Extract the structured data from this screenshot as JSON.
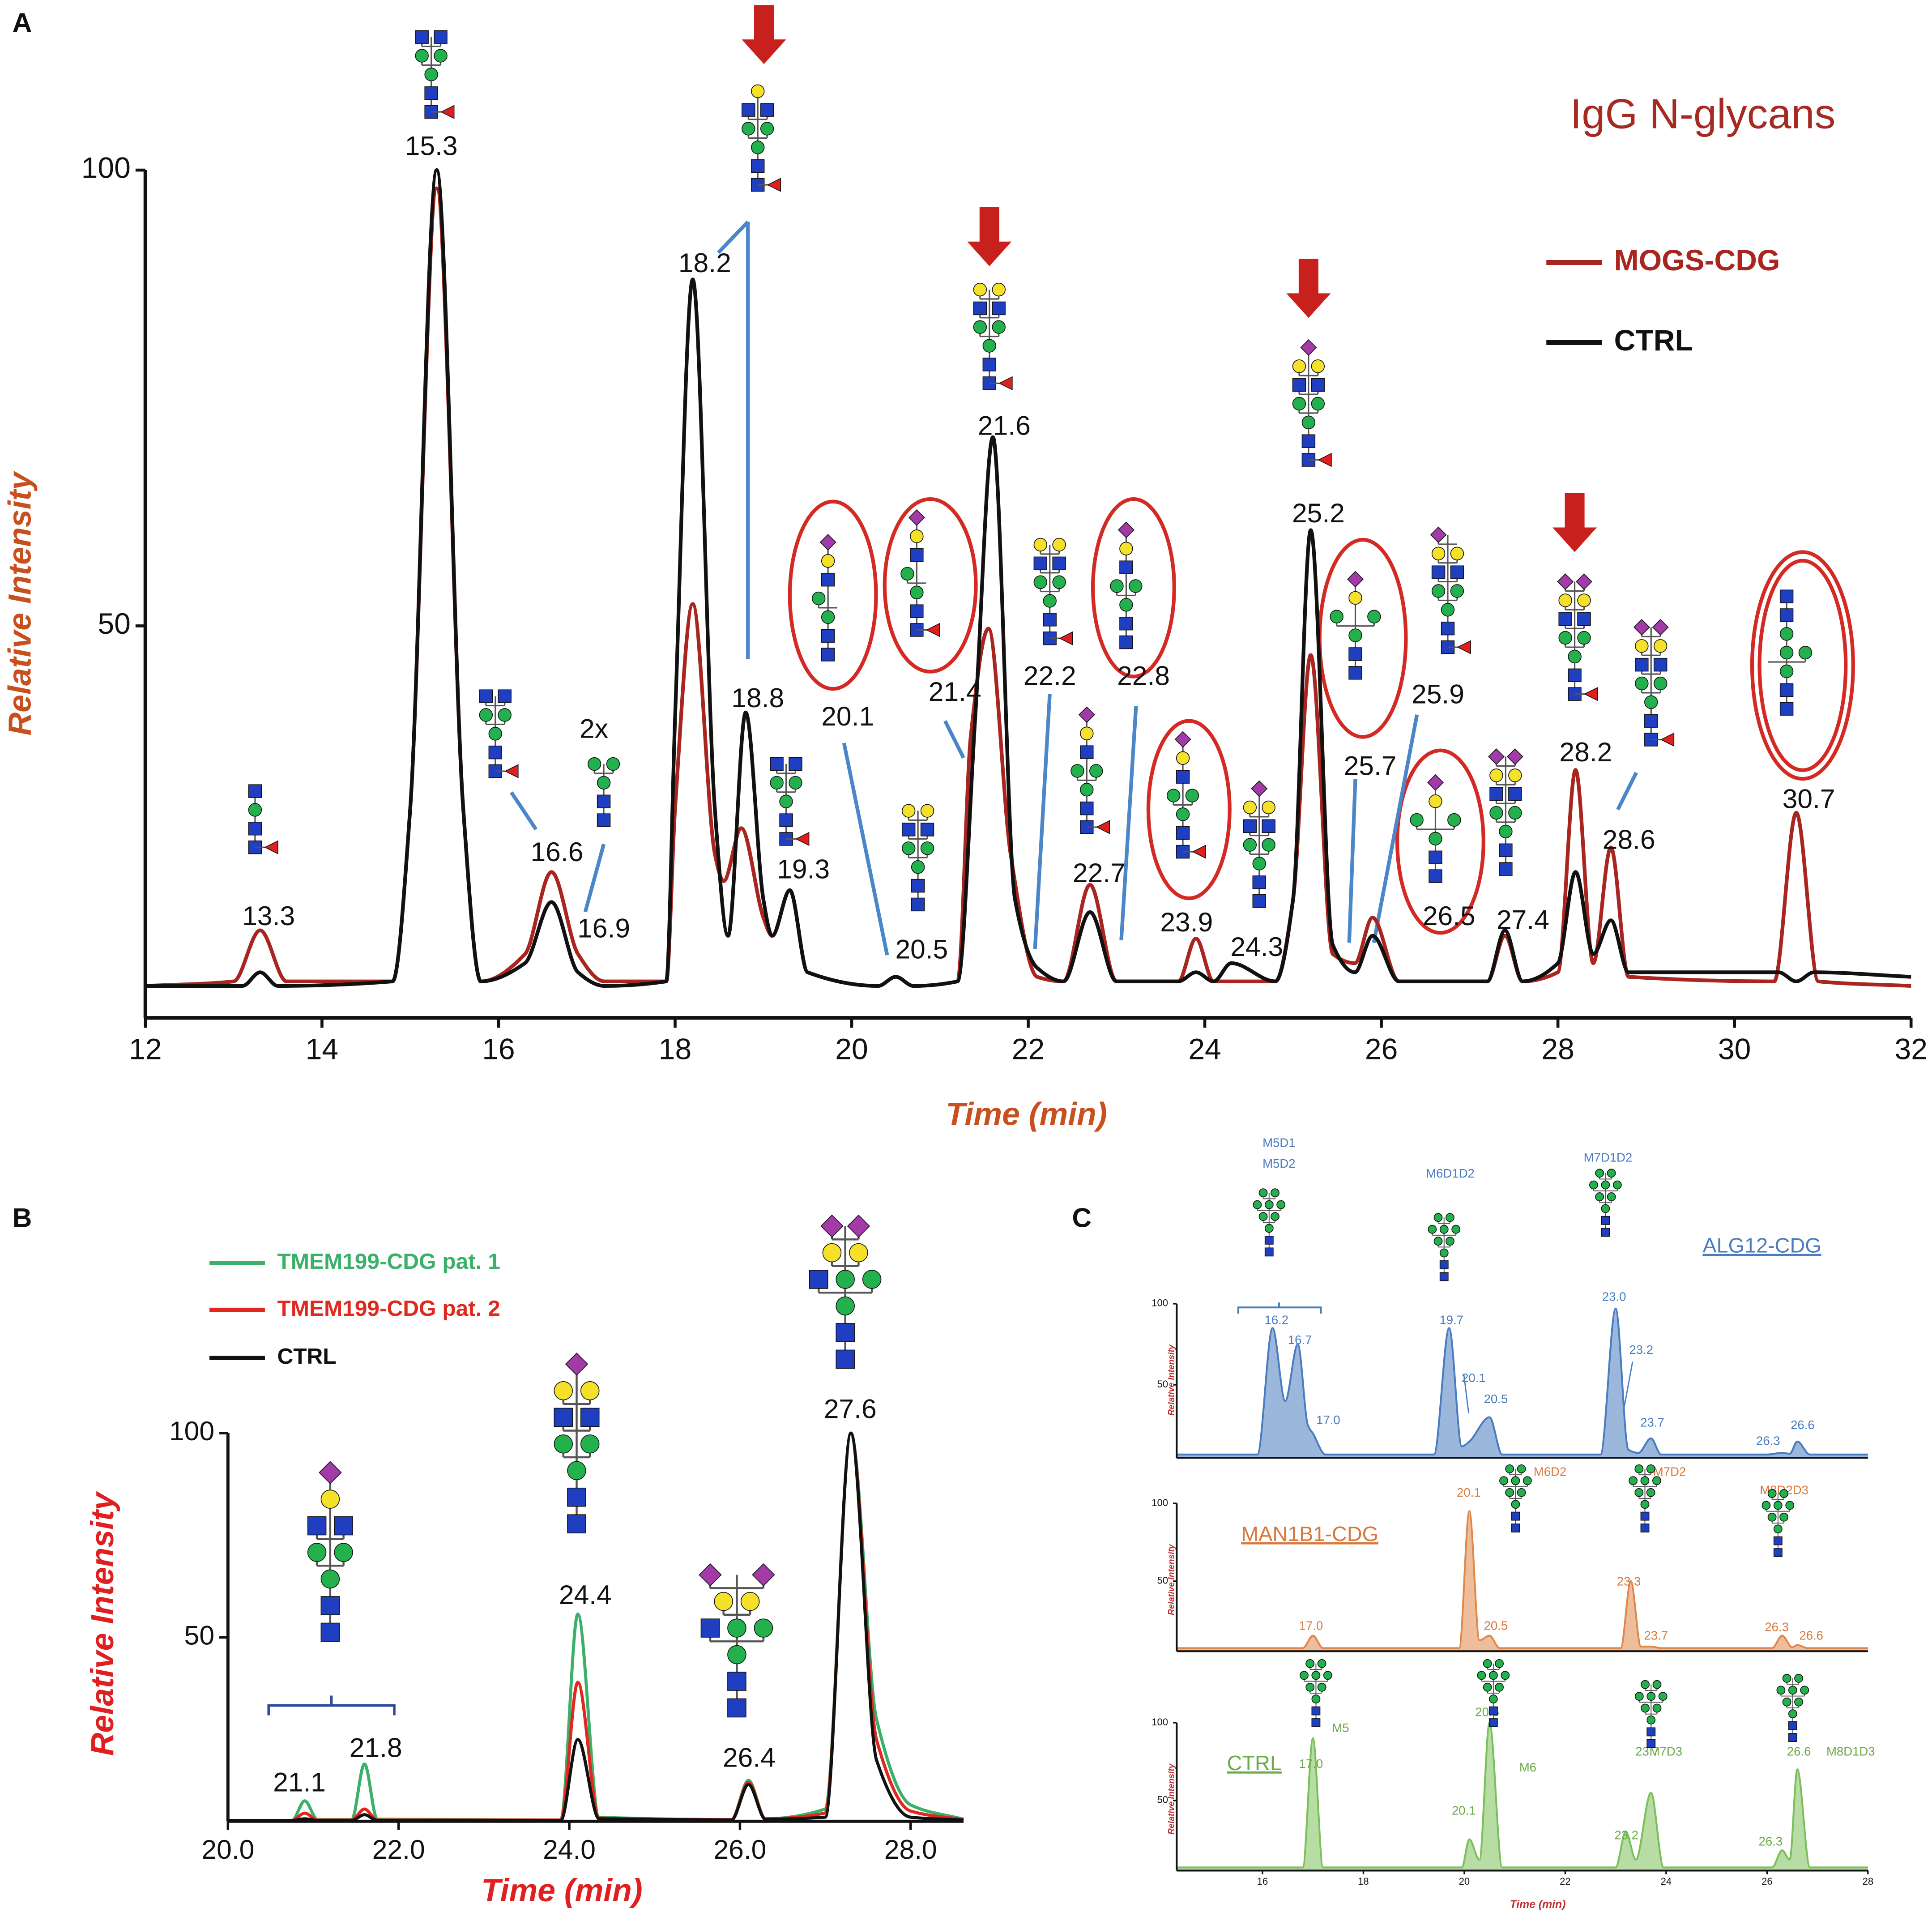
{
  "chart_data": [
    {
      "type": "line",
      "panel": "A",
      "title": "IgG N-glycans",
      "x_label": "Time (min)",
      "y_label": "Relative Intensity",
      "xlim": [
        12,
        32
      ],
      "ylim": [
        7,
        100
      ],
      "xticks": [
        12,
        14,
        16,
        18,
        20,
        22,
        24,
        26,
        28,
        30,
        32
      ],
      "yticks": [
        50,
        100
      ],
      "series": [
        {
          "name": "MOGS-CDG",
          "color": "#a8261f",
          "x": [
            12,
            13.0,
            13.3,
            13.6,
            14.8,
            15.0,
            15.3,
            15.6,
            15.8,
            16.3,
            16.6,
            16.9,
            17.2,
            17.9,
            18.0,
            18.2,
            18.45,
            18.55,
            18.75,
            19.0,
            19.1,
            19.3,
            19.5,
            20.3,
            20.5,
            20.7,
            21.2,
            21.35,
            21.55,
            21.8,
            22.1,
            22.4,
            22.7,
            23.0,
            23.7,
            23.9,
            24.1,
            24.8,
            25.0,
            25.2,
            25.45,
            25.7,
            25.9,
            26.2,
            27.2,
            27.4,
            27.6,
            28.0,
            28.2,
            28.4,
            28.6,
            28.8,
            30.45,
            30.7,
            30.95,
            32
          ],
          "values": [
            10.5,
            11,
            16.6,
            11,
            11,
            30,
            98,
            30,
            11,
            14,
            23,
            14,
            11,
            11,
            30,
            52.4,
            25,
            22,
            27.8,
            18,
            16,
            21,
            12,
            10.5,
            11.5,
            10.5,
            11,
            38,
            49.7,
            25,
            11.5,
            11,
            21.6,
            11,
            11,
            15.7,
            11,
            11,
            20,
            46.8,
            14,
            13,
            18,
            11,
            11,
            16,
            11,
            12,
            34.2,
            13,
            25.7,
            11.5,
            11,
            29.5,
            11,
            10.5
          ]
        },
        {
          "name": "CTRL",
          "color": "#111111",
          "x": [
            12,
            13.1,
            13.3,
            13.5,
            14.8,
            15.0,
            15.3,
            15.6,
            15.8,
            16.3,
            16.6,
            16.9,
            17.2,
            17.9,
            18.0,
            18.2,
            18.45,
            18.6,
            18.8,
            19.0,
            19.1,
            19.3,
            19.5,
            20.3,
            20.5,
            20.7,
            21.2,
            21.4,
            21.6,
            21.85,
            22.1,
            22.4,
            22.7,
            23.0,
            23.7,
            23.9,
            24.1,
            24.3,
            24.8,
            25.0,
            25.2,
            25.45,
            25.7,
            25.9,
            26.2,
            27.2,
            27.4,
            27.6,
            28.0,
            28.2,
            28.4,
            28.6,
            28.8,
            30.5,
            30.7,
            30.9,
            32
          ],
          "values": [
            10.5,
            10.5,
            12,
            10.5,
            11,
            30,
            100,
            30,
            11,
            13,
            19.7,
            12,
            10.5,
            11,
            40,
            88,
            30,
            16,
            40.5,
            20,
            16,
            21,
            12,
            10.5,
            11.5,
            10.5,
            11,
            40,
            70.7,
            20,
            12.5,
            11,
            18.6,
            11,
            11,
            12,
            11,
            13,
            11,
            20,
            60.5,
            15,
            12,
            16,
            11,
            11,
            16.6,
            11,
            13,
            23,
            14,
            17.7,
            12,
            12,
            11,
            12,
            11.5
          ]
        }
      ],
      "annotations": [
        "15.3",
        "13.3",
        "16.6",
        "16.9",
        "18.2",
        "18.8",
        "19.3",
        "20.1",
        "20.5",
        "21.4",
        "21.6",
        "22.2",
        "22.8",
        "22.7",
        "23.9",
        "24.3",
        "25.2",
        "25.7",
        "25.9",
        "26.5",
        "27.4",
        "28.2",
        "28.6",
        "30.7",
        "2x"
      ]
    },
    {
      "type": "line",
      "panel": "B",
      "x_label": "Time (min)",
      "y_label": "Relative Intensity",
      "xlim": [
        20,
        28.62
      ],
      "ylim": [
        5,
        100
      ],
      "xticks": [
        {
          "value": 20,
          "label": "20.0"
        },
        {
          "value": 22,
          "label": "22.0"
        },
        {
          "value": 24,
          "label": "24.0"
        },
        {
          "value": 26,
          "label": "26.0"
        },
        {
          "value": 28,
          "label": "28.0"
        }
      ],
      "yticks": [
        50,
        100
      ],
      "x": [
        20,
        20.75,
        20.9,
        21.05,
        21.45,
        21.6,
        21.75,
        23.9,
        24.1,
        24.35,
        25.9,
        26.1,
        26.3,
        27.0,
        27.3,
        27.6,
        28.0,
        28.62
      ],
      "series": [
        {
          "name": "TMEM199-CDG pat. 1",
          "color": "#3bb06a",
          "values": [
            5.2,
            5.2,
            10,
            5.4,
            5.4,
            19,
            5.5,
            5.3,
            55.7,
            6,
            5.4,
            15,
            5.6,
            8,
            100,
            30,
            9,
            5.5
          ]
        },
        {
          "name": "TMEM199-CDG pat. 2",
          "color": "#e0281e",
          "values": [
            5.2,
            5.2,
            7,
            5.3,
            5.3,
            8,
            5.3,
            5.3,
            39,
            5.8,
            5.4,
            14.5,
            5.6,
            7,
            100,
            25,
            7.5,
            5.4
          ]
        },
        {
          "name": "CTRL",
          "color": "#111111",
          "values": [
            5.2,
            5.2,
            5.6,
            5.2,
            5.2,
            6.6,
            5.2,
            5.2,
            25,
            5.6,
            5.3,
            14,
            5.5,
            6,
            100,
            20,
            6,
            5.3
          ]
        }
      ],
      "annotations": [
        "21.1",
        "21.8",
        "24.4",
        "26.4",
        "27.6"
      ]
    },
    {
      "type": "area",
      "panel": "C",
      "title": "ALG12-CDG",
      "y_label": "Relative Intensity",
      "xlim": [
        14.3,
        28
      ],
      "ylim": [
        5,
        100
      ],
      "yticks": [
        50,
        100
      ],
      "x": [
        14.3,
        15.9,
        16.2,
        16.45,
        16.7,
        16.9,
        17.0,
        17.25,
        19.4,
        19.7,
        19.95,
        20.1,
        20.5,
        20.75,
        22.7,
        23.0,
        23.25,
        23.45,
        23.7,
        23.9,
        26.0,
        26.3,
        26.45,
        26.6,
        26.85,
        28
      ],
      "series": [
        {
          "color": "#4a7cc0",
          "values": [
            7,
            7,
            85,
            40,
            75,
            25,
            20,
            7,
            7,
            85,
            12,
            15,
            30,
            7,
            7,
            97,
            10,
            8,
            17,
            7,
            7,
            8,
            7.5,
            15,
            7,
            7
          ]
        }
      ],
      "annotations": [
        "16.2",
        "16.7",
        "17.0",
        "19.7",
        "20.1",
        "20.5",
        "23.0",
        "23.2",
        "23.7",
        "26.3",
        "26.6",
        "M5D1",
        "M5D2",
        "M6D1D2",
        "M7D1D2"
      ]
    },
    {
      "type": "area",
      "title": "MAN1B1-CDG",
      "y_label": "Relative Intensity",
      "xlim": [
        14.3,
        28
      ],
      "ylim": [
        5,
        100
      ],
      "yticks": [
        50,
        100
      ],
      "x": [
        14.3,
        16.8,
        17.0,
        17.2,
        19.9,
        20.1,
        20.3,
        20.5,
        20.7,
        23.1,
        23.3,
        23.5,
        23.7,
        23.9,
        26.1,
        26.3,
        26.5,
        26.6,
        26.8,
        28
      ],
      "series": [
        {
          "color": "#e0884a",
          "values": [
            7,
            7,
            15,
            7,
            7,
            95,
            12,
            15,
            7,
            7,
            50,
            8,
            8,
            7,
            7,
            15,
            7.5,
            9,
            7,
            7
          ]
        }
      ],
      "annotations": [
        "17.0",
        "20.1",
        "20.5",
        "23.3",
        "23.7",
        "26.3",
        "26.6",
        "M6D2",
        "M7D2",
        "M8D2D3"
      ]
    },
    {
      "type": "area",
      "title": "CTRL",
      "x_label": "Time (min)",
      "y_label": "Relative Intensity",
      "xlim": [
        14.3,
        28
      ],
      "ylim": [
        5,
        100
      ],
      "xticks": [
        16,
        18,
        20,
        22,
        24,
        26,
        28
      ],
      "yticks": [
        50,
        100
      ],
      "x": [
        14.3,
        16.8,
        17.0,
        17.2,
        19.95,
        20.1,
        20.3,
        20.5,
        20.75,
        23.0,
        23.2,
        23.4,
        23.7,
        23.95,
        26.1,
        26.3,
        26.45,
        26.6,
        26.85,
        28
      ],
      "series": [
        {
          "color": "#7cbf5a",
          "values": [
            7,
            7,
            90,
            7,
            7,
            25,
            12,
            100,
            7,
            7,
            30,
            12,
            55,
            7,
            7,
            18,
            12,
            70,
            7,
            7
          ]
        }
      ],
      "annotations": [
        "17.0",
        "20.1",
        "20.5",
        "23.2",
        "23.7",
        "26.3",
        "26.6",
        "M5",
        "M6",
        "M7D3",
        "M8D1D3"
      ]
    }
  ]
}
